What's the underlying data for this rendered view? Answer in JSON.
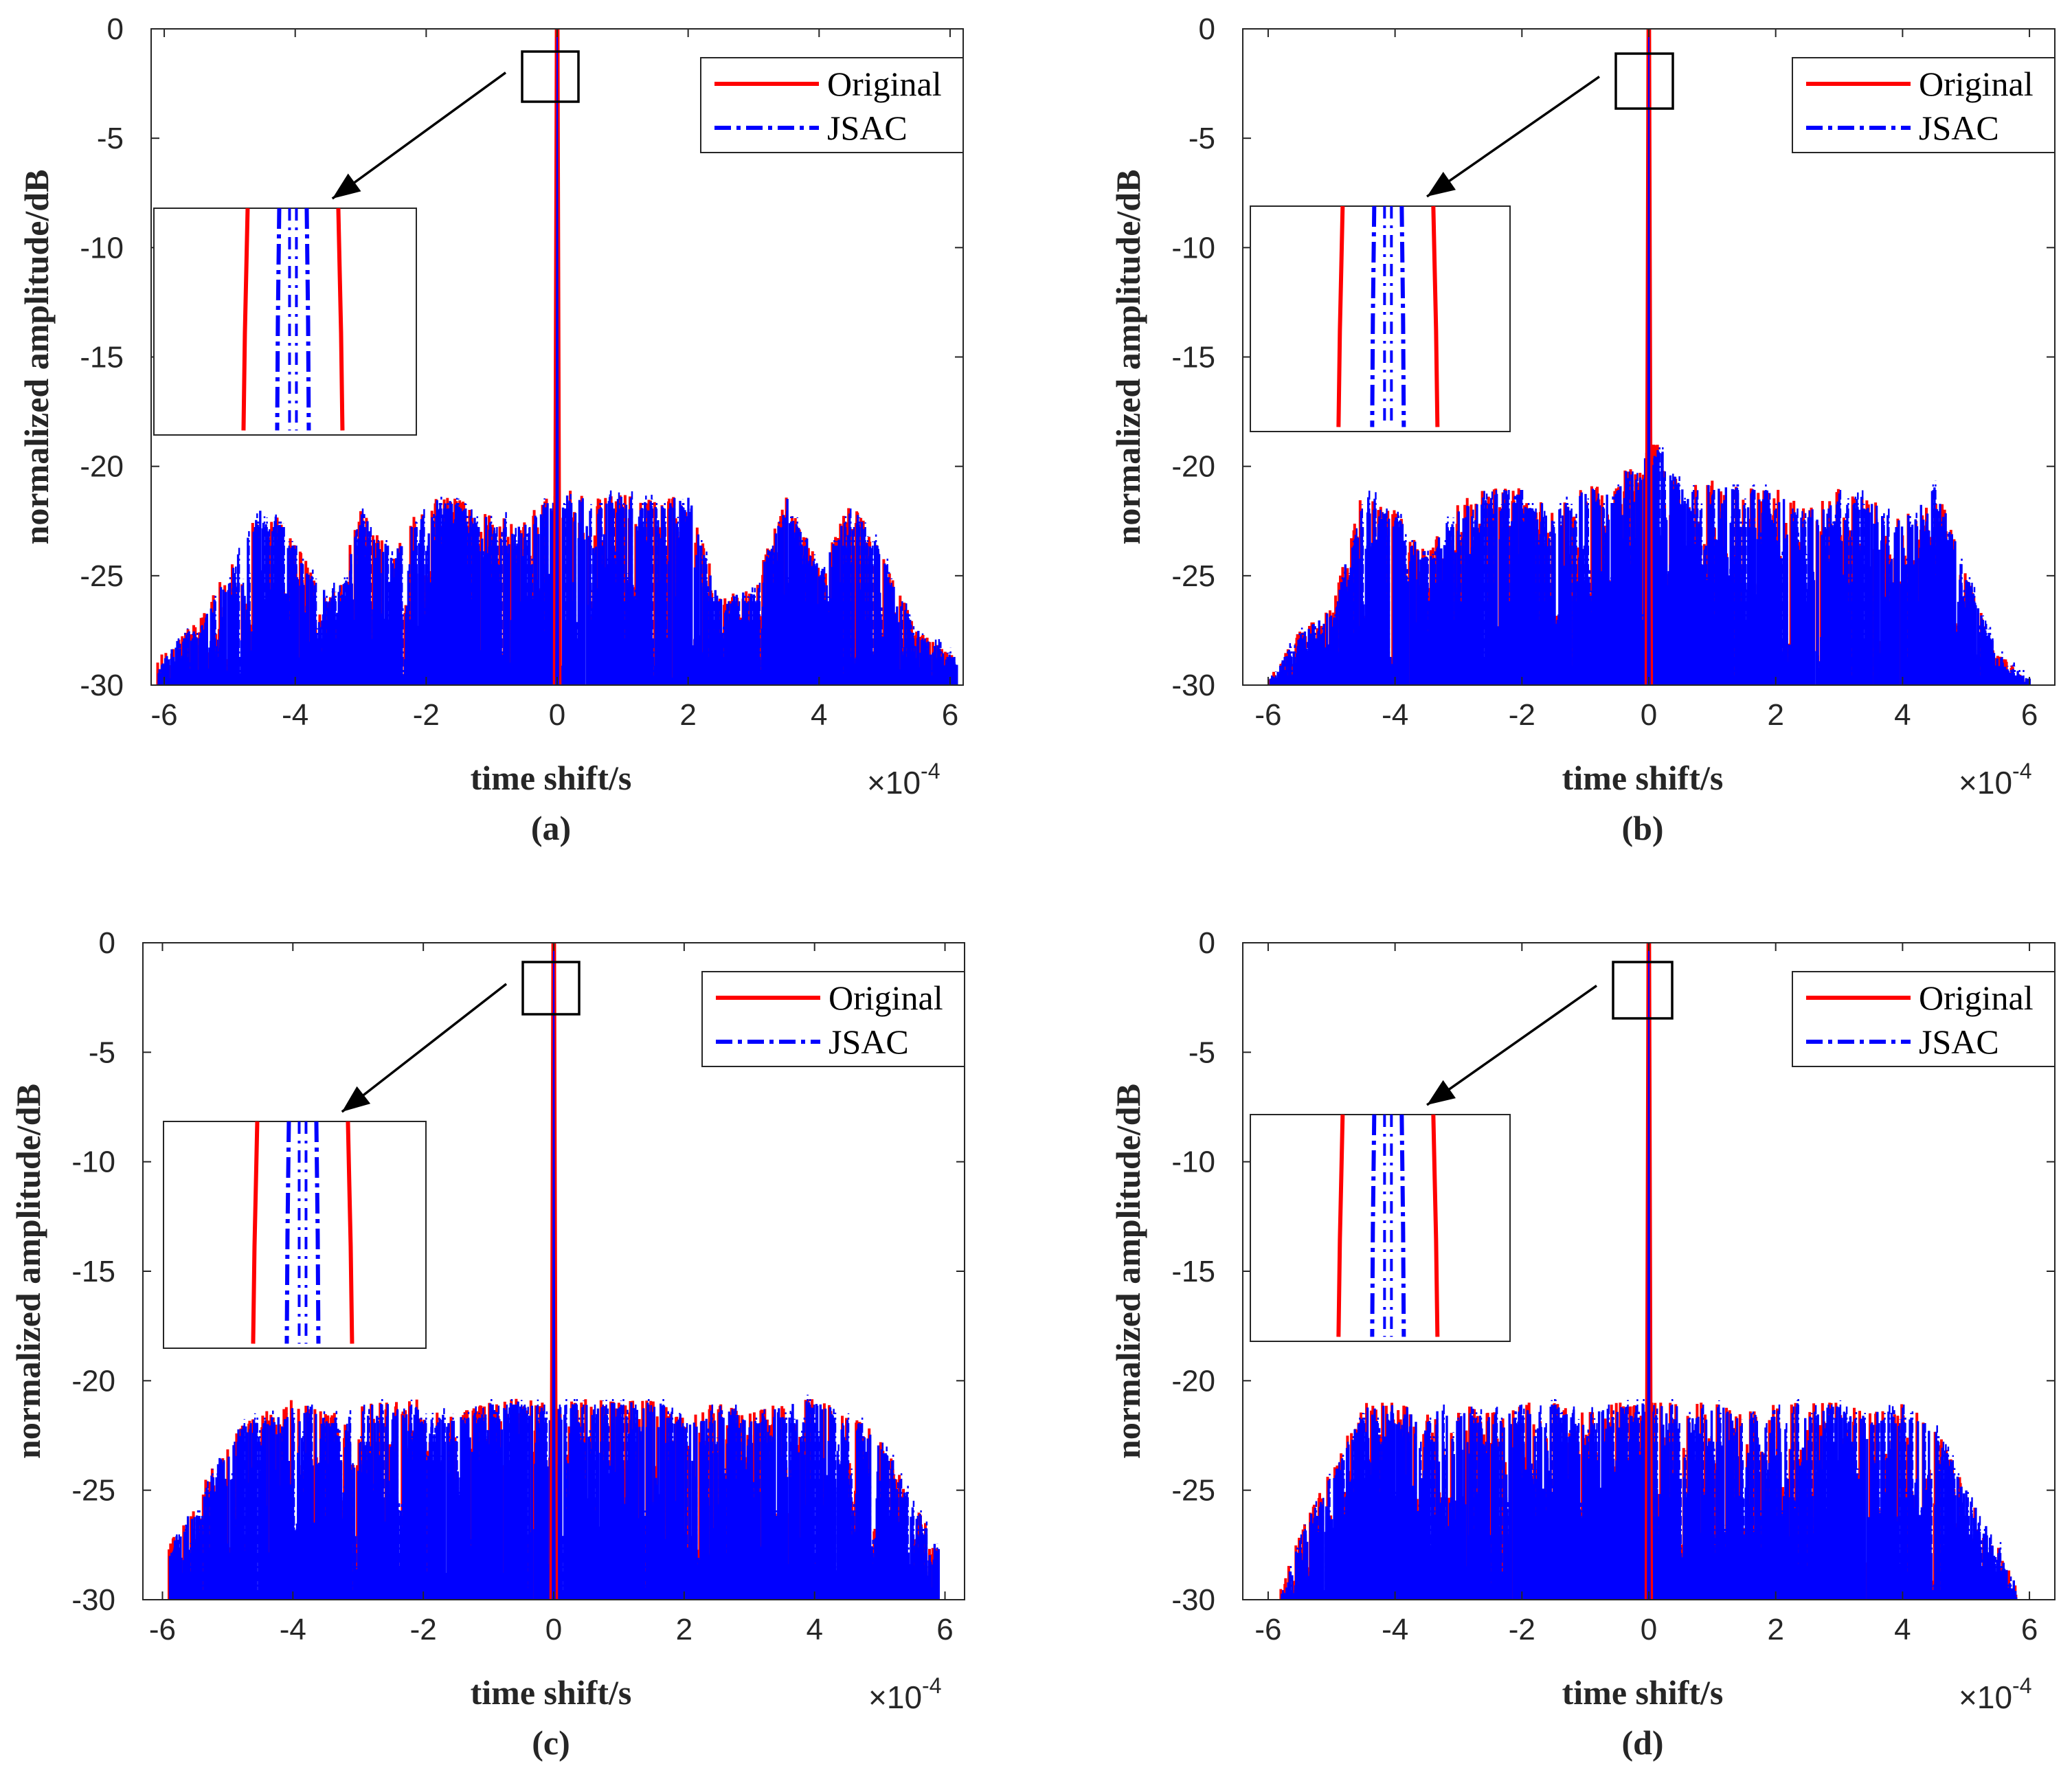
{
  "chart_data": [
    {
      "type": "line",
      "panel_label": "(a)",
      "xlabel": "time shift/s",
      "ylabel": "normalized amplitude/dB",
      "x_multiplier": "×10",
      "x_multiplier_exp": "-4",
      "xlim": [
        -6.2,
        6.2
      ],
      "ylim": [
        -30,
        0
      ],
      "xticks": [
        -6,
        -4,
        -2,
        0,
        2,
        4,
        6
      ],
      "yticks": [
        0,
        -5,
        -10,
        -15,
        -20,
        -25,
        -30
      ],
      "legend_position": "top-right",
      "sidelobe_extent": [
        -6.1,
        6.1
      ],
      "sidelobe_envelope": [
        [
          -6.0,
          -28.6
        ],
        [
          -5.5,
          -27.0
        ],
        [
          -5.0,
          -24.5
        ],
        [
          -4.5,
          -21.4
        ],
        [
          -4.0,
          -23.5
        ],
        [
          -3.5,
          -26.0
        ],
        [
          -3.0,
          -22.0
        ],
        [
          -2.5,
          -24.0
        ],
        [
          -2.0,
          -21.3
        ],
        [
          -1.5,
          -21.5
        ],
        [
          -1.0,
          -22.3
        ],
        [
          -0.5,
          -22.5
        ],
        [
          -0.2,
          -21.5
        ],
        [
          0.2,
          -21.0
        ],
        [
          0.5,
          -21.5
        ],
        [
          1.0,
          -21.3
        ],
        [
          1.5,
          -21.5
        ],
        [
          2.0,
          -21.3
        ],
        [
          2.5,
          -26.0
        ],
        [
          3.0,
          -25.5
        ],
        [
          3.5,
          -21.4
        ],
        [
          4.0,
          -24.5
        ],
        [
          4.5,
          -21.5
        ],
        [
          5.0,
          -24.3
        ],
        [
          5.5,
          -27.5
        ],
        [
          6.0,
          -28.6
        ]
      ],
      "series": [
        {
          "name": "Original",
          "color": "#ff0000",
          "style": "solid",
          "mainlobe_halfwidth": 0.05
        },
        {
          "name": "JSAC",
          "color": "#0000ff",
          "style": "dash-dot",
          "mainlobe_halfwidth": 0.02
        }
      ]
    },
    {
      "type": "line",
      "panel_label": "(b)",
      "xlabel": "time shift/s",
      "ylabel": "normalized amplitude/dB",
      "x_multiplier": "×10",
      "x_multiplier_exp": "-4",
      "xlim": [
        -6.4,
        6.4
      ],
      "ylim": [
        -30,
        0
      ],
      "xticks": [
        -6,
        -4,
        -2,
        0,
        2,
        4,
        6
      ],
      "yticks": [
        0,
        -5,
        -10,
        -15,
        -20,
        -25,
        -30
      ],
      "legend_position": "top-right",
      "sidelobe_extent": [
        -6.0,
        6.0
      ],
      "sidelobe_envelope": [
        [
          -6.0,
          -29.8
        ],
        [
          -5.5,
          -27.5
        ],
        [
          -5.0,
          -26.5
        ],
        [
          -4.5,
          -21.0
        ],
        [
          -4.0,
          -22.0
        ],
        [
          -3.5,
          -24.0
        ],
        [
          -3.0,
          -21.5
        ],
        [
          -2.5,
          -21.0
        ],
        [
          -2.0,
          -21.0
        ],
        [
          -1.5,
          -22.0
        ],
        [
          -1.0,
          -20.8
        ],
        [
          -0.5,
          -21.0
        ],
        [
          -0.2,
          -19.0
        ],
        [
          0.2,
          -19.0
        ],
        [
          0.5,
          -21.0
        ],
        [
          1.0,
          -20.6
        ],
        [
          1.5,
          -21.0
        ],
        [
          2.0,
          -21.0
        ],
        [
          2.5,
          -22.0
        ],
        [
          3.0,
          -21.0
        ],
        [
          3.5,
          -21.5
        ],
        [
          4.0,
          -22.5
        ],
        [
          4.5,
          -20.5
        ],
        [
          5.0,
          -25.0
        ],
        [
          5.5,
          -28.5
        ],
        [
          6.0,
          -29.8
        ]
      ],
      "series": [
        {
          "name": "Original",
          "color": "#ff0000",
          "style": "solid",
          "mainlobe_halfwidth": 0.05
        },
        {
          "name": "JSAC",
          "color": "#0000ff",
          "style": "dash-dot",
          "mainlobe_halfwidth": 0.02
        }
      ]
    },
    {
      "type": "line",
      "panel_label": "(c)",
      "xlabel": "time shift/s",
      "ylabel": "normalized amplitude/dB",
      "x_multiplier": "×10",
      "x_multiplier_exp": "-4",
      "xlim": [
        -6.3,
        6.3
      ],
      "ylim": [
        -30,
        0
      ],
      "xticks": [
        -6,
        -4,
        -2,
        0,
        2,
        4,
        6
      ],
      "yticks": [
        0,
        -5,
        -10,
        -15,
        -20,
        -25,
        -30
      ],
      "legend_position": "top-right",
      "sidelobe_extent": [
        -5.9,
        5.9
      ],
      "sidelobe_envelope": [
        [
          -5.9,
          -27.5
        ],
        [
          -5.5,
          -25.5
        ],
        [
          -5.0,
          -22.5
        ],
        [
          -4.5,
          -21.5
        ],
        [
          -4.0,
          -20.8
        ],
        [
          -3.5,
          -21.5
        ],
        [
          -3.0,
          -21.0
        ],
        [
          -2.5,
          -21.0
        ],
        [
          -2.0,
          -20.8
        ],
        [
          -1.5,
          -21.5
        ],
        [
          -1.0,
          -21.0
        ],
        [
          -0.5,
          -20.8
        ],
        [
          -0.2,
          -21.0
        ],
        [
          0.2,
          -21.0
        ],
        [
          0.5,
          -20.8
        ],
        [
          1.0,
          -21.0
        ],
        [
          1.5,
          -20.8
        ],
        [
          2.0,
          -21.5
        ],
        [
          2.5,
          -21.0
        ],
        [
          3.0,
          -21.5
        ],
        [
          3.5,
          -21.0
        ],
        [
          4.0,
          -20.8
        ],
        [
          4.5,
          -21.5
        ],
        [
          5.0,
          -22.5
        ],
        [
          5.5,
          -25.5
        ],
        [
          5.9,
          -27.5
        ]
      ],
      "series": [
        {
          "name": "Original",
          "color": "#ff0000",
          "style": "solid",
          "mainlobe_halfwidth": 0.05
        },
        {
          "name": "JSAC",
          "color": "#0000ff",
          "style": "dash-dot",
          "mainlobe_halfwidth": 0.02
        }
      ]
    },
    {
      "type": "line",
      "panel_label": "(d)",
      "xlabel": "time shift/s",
      "ylabel": "normalized amplitude/dB",
      "x_multiplier": "×10",
      "x_multiplier_exp": "-4",
      "xlim": [
        -6.4,
        6.4
      ],
      "ylim": [
        -30,
        0
      ],
      "xticks": [
        -6,
        -4,
        -2,
        0,
        2,
        4,
        6
      ],
      "yticks": [
        0,
        -5,
        -10,
        -15,
        -20,
        -25,
        -30
      ],
      "legend_position": "top-right",
      "sidelobe_extent": [
        -5.8,
        5.8
      ],
      "sidelobe_envelope": [
        [
          -5.8,
          -29.5
        ],
        [
          -5.5,
          -27.0
        ],
        [
          -5.0,
          -24.0
        ],
        [
          -4.5,
          -21.0
        ],
        [
          -4.0,
          -21.0
        ],
        [
          -3.5,
          -21.5
        ],
        [
          -3.0,
          -21.0
        ],
        [
          -2.5,
          -21.5
        ],
        [
          -2.0,
          -21.0
        ],
        [
          -1.5,
          -21.0
        ],
        [
          -1.0,
          -21.5
        ],
        [
          -0.5,
          -21.0
        ],
        [
          -0.2,
          -21.0
        ],
        [
          0.2,
          -21.0
        ],
        [
          0.5,
          -21.0
        ],
        [
          1.0,
          -21.0
        ],
        [
          1.5,
          -21.5
        ],
        [
          2.0,
          -21.0
        ],
        [
          2.5,
          -21.0
        ],
        [
          3.0,
          -21.0
        ],
        [
          3.5,
          -21.5
        ],
        [
          4.0,
          -21.0
        ],
        [
          4.5,
          -22.0
        ],
        [
          5.0,
          -25.0
        ],
        [
          5.5,
          -27.5
        ],
        [
          5.8,
          -29.5
        ]
      ],
      "series": [
        {
          "name": "Original",
          "color": "#ff0000",
          "style": "solid",
          "mainlobe_halfwidth": 0.05
        },
        {
          "name": "JSAC",
          "color": "#0000ff",
          "style": "dash-dot",
          "mainlobe_halfwidth": 0.02
        }
      ]
    }
  ]
}
